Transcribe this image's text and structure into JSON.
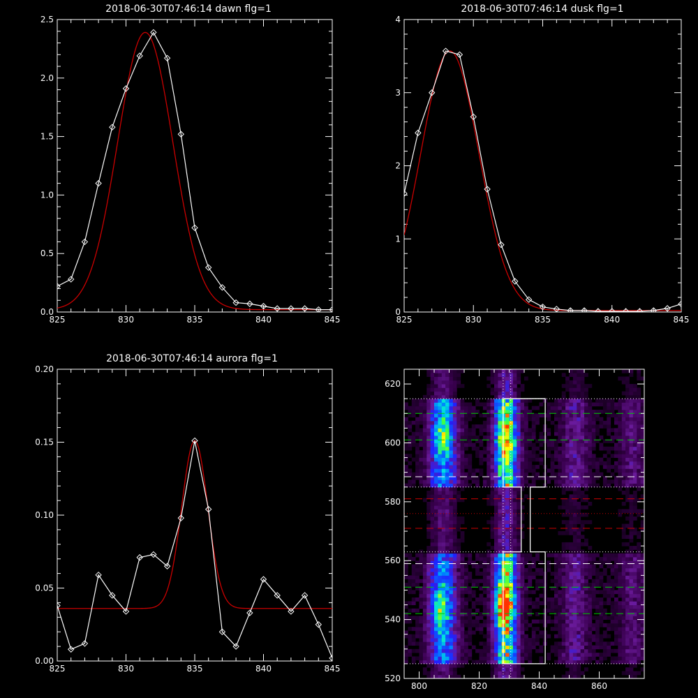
{
  "chart_data": [
    {
      "type": "line",
      "title": "2018-06-30T07:46:14 dawn flg=1",
      "xlim": [
        825,
        845
      ],
      "ylim": [
        0,
        2.5
      ],
      "xticks": [
        "825",
        "830",
        "835",
        "840",
        "845"
      ],
      "yticks": [
        "0.0",
        "0.5",
        "1.0",
        "1.5",
        "2.0",
        "2.5"
      ],
      "series": [
        {
          "color": "#ffffff",
          "marker": "diamond",
          "x": [
            825,
            826,
            827,
            828,
            829,
            830,
            831,
            832,
            833,
            834,
            835,
            836,
            837,
            838,
            839,
            840,
            841,
            842,
            843,
            844,
            845
          ],
          "y": [
            0.22,
            0.28,
            0.6,
            1.1,
            1.58,
            1.91,
            2.19,
            2.39,
            2.17,
            1.52,
            0.72,
            0.38,
            0.21,
            0.08,
            0.07,
            0.05,
            0.03,
            0.03,
            0.03,
            0.02,
            0.02
          ]
        },
        {
          "color": "#cc0000",
          "marker": "none",
          "fit": "gaussian",
          "center": 831.4,
          "sigma": 2.0,
          "amplitude": 2.37,
          "baseline": 0.02
        }
      ]
    },
    {
      "type": "line",
      "title": "2018-06-30T07:46:14 dusk flg=1",
      "xlim": [
        825,
        845
      ],
      "ylim": [
        0,
        4
      ],
      "xticks": [
        "825",
        "830",
        "835",
        "840",
        "845"
      ],
      "yticks": [
        "0",
        "1",
        "2",
        "3",
        "4"
      ],
      "series": [
        {
          "color": "#ffffff",
          "marker": "diamond",
          "x": [
            825,
            826,
            827,
            828,
            829,
            830,
            831,
            832,
            833,
            834,
            835,
            836,
            837,
            838,
            839,
            840,
            841,
            842,
            843,
            844,
            845
          ],
          "y": [
            1.62,
            2.45,
            3.0,
            3.57,
            3.52,
            2.67,
            1.68,
            0.92,
            0.42,
            0.17,
            0.07,
            0.04,
            0.02,
            0.02,
            0.01,
            0.01,
            0.01,
            0.01,
            0.02,
            0.05,
            0.11
          ]
        },
        {
          "color": "#cc0000",
          "marker": "none",
          "fit": "gaussian",
          "center": 828.3,
          "sigma": 2.1,
          "amplitude": 3.55,
          "baseline": 0.02
        }
      ]
    },
    {
      "type": "line",
      "title": "2018-06-30T07:46:14 aurora flg=1",
      "xlim": [
        825,
        845
      ],
      "ylim": [
        0,
        0.2
      ],
      "xticks": [
        "825",
        "830",
        "835",
        "840",
        "845"
      ],
      "yticks": [
        "0.00",
        "0.05",
        "0.10",
        "0.15",
        "0.20"
      ],
      "series": [
        {
          "color": "#ffffff",
          "marker": "diamond",
          "x": [
            825,
            826,
            827,
            828,
            829,
            830,
            831,
            832,
            833,
            834,
            835,
            836,
            837,
            838,
            839,
            840,
            841,
            842,
            843,
            844,
            845
          ],
          "y": [
            0.038,
            0.008,
            0.012,
            0.059,
            0.045,
            0.034,
            0.071,
            0.073,
            0.065,
            0.098,
            0.151,
            0.104,
            0.02,
            0.01,
            0.033,
            0.056,
            0.045,
            0.034,
            0.045,
            0.025,
            0.002
          ]
        },
        {
          "color": "#cc0000",
          "marker": "none",
          "fit": "gaussian",
          "center": 835.0,
          "sigma": 0.95,
          "amplitude": 0.115,
          "baseline": 0.036
        }
      ]
    },
    {
      "type": "heatmap",
      "xlim": [
        795,
        875
      ],
      "ylim": [
        520,
        625
      ],
      "xticks": [
        "800",
        "820",
        "840",
        "860"
      ],
      "yticks": [
        "520",
        "540",
        "560",
        "580",
        "600",
        "620"
      ],
      "colormap": [
        "#000000",
        "#3a0050",
        "#6a1a9a",
        "#2020ff",
        "#0080ff",
        "#00e0e0",
        "#40ff40",
        "#ffff00",
        "#ff3000"
      ],
      "emission_columns": [
        {
          "x": 808,
          "width": 3.2,
          "strength": 0.55
        },
        {
          "x": 829,
          "width": 2.6,
          "strength": 0.85
        },
        {
          "x": 852,
          "width": 3.0,
          "strength": 0.22
        },
        {
          "x": 871,
          "width": 3.0,
          "strength": 0.16
        }
      ],
      "bright_spots": [
        {
          "x": 828,
          "y": 545,
          "level": 1.0
        },
        {
          "x": 807,
          "y": 544,
          "level": 0.6
        },
        {
          "x": 829,
          "y": 601,
          "level": 0.65
        },
        {
          "x": 808,
          "y": 603,
          "level": 0.55
        }
      ],
      "bands": [
        {
          "y0": 585,
          "y1": 615
        },
        {
          "y0": 525,
          "y1": 563
        }
      ],
      "white_box": {
        "upper": {
          "x0": 828,
          "x1": 842,
          "y0": 585,
          "y1": 615
        },
        "lower": {
          "x0": 828,
          "x1": 842,
          "y0": 525,
          "y1": 563
        },
        "neck": {
          "x0": 834,
          "x1": 837,
          "y0": 563,
          "y1": 585
        }
      },
      "vertical_dotted_x": [
        828,
        830.5
      ],
      "horizontal_lines": [
        {
          "y": 615,
          "color": "#ffffff",
          "style": "dotted"
        },
        {
          "y": 610,
          "color": "#00cc00",
          "style": "dashed"
        },
        {
          "y": 601,
          "color": "#00cc00",
          "style": "dashed"
        },
        {
          "y": 588.5,
          "color": "#ffffff",
          "style": "dashed"
        },
        {
          "y": 585,
          "color": "#ffffff",
          "style": "dotted"
        },
        {
          "y": 581,
          "color": "#cc0000",
          "style": "dashed"
        },
        {
          "y": 576,
          "color": "#cc0000",
          "style": "dotted"
        },
        {
          "y": 571,
          "color": "#cc0000",
          "style": "dashed"
        },
        {
          "y": 563,
          "color": "#ffffff",
          "style": "dotted"
        },
        {
          "y": 559,
          "color": "#ffffff",
          "style": "dashed"
        },
        {
          "y": 551,
          "color": "#00cc00",
          "style": "dashed"
        },
        {
          "y": 542,
          "color": "#00cc00",
          "style": "dashed"
        },
        {
          "y": 525,
          "color": "#ffffff",
          "style": "dotted"
        }
      ]
    }
  ]
}
